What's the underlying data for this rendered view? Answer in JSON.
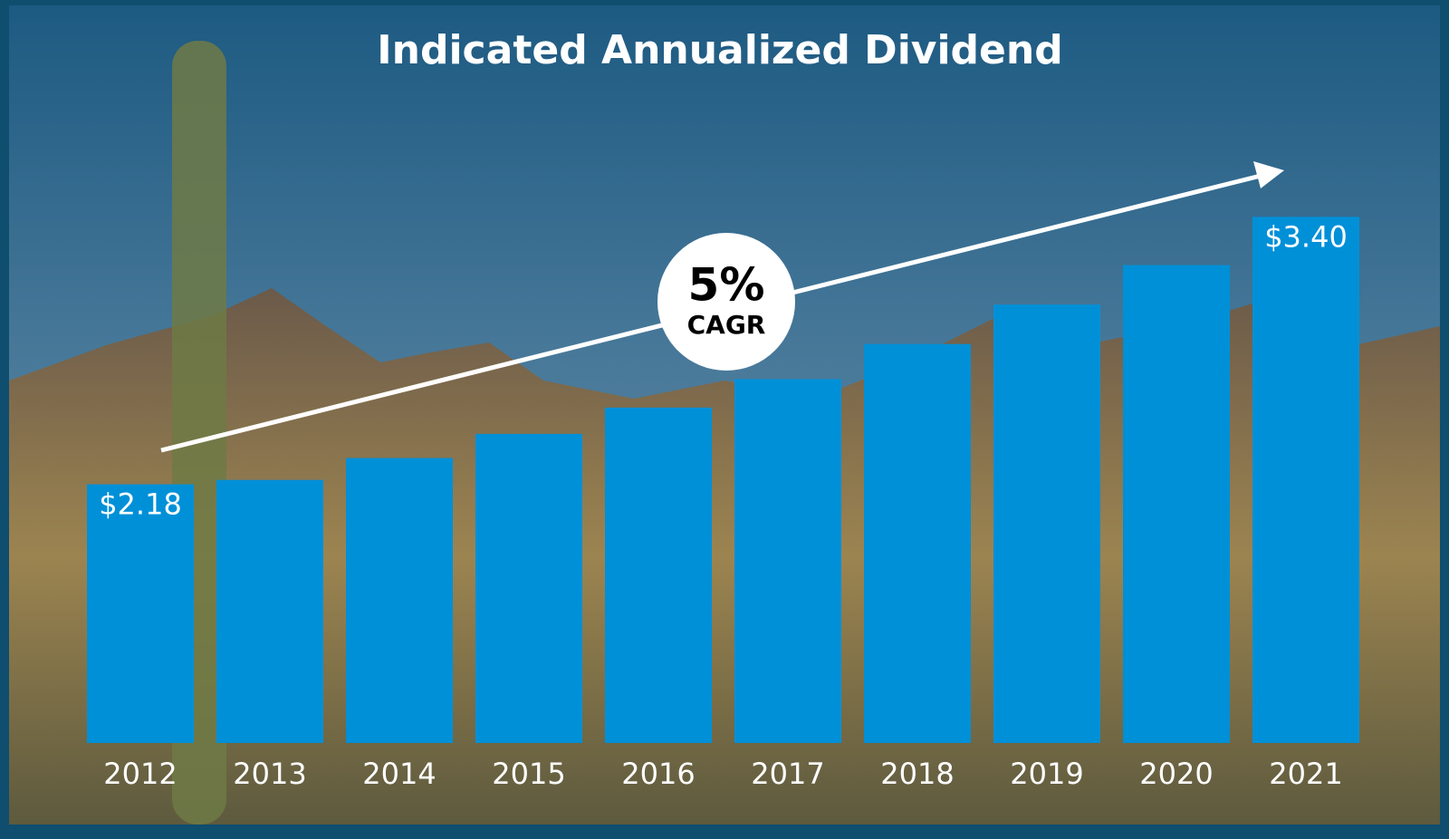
{
  "chart_data": {
    "type": "bar",
    "title": "Indicated Annualized Dividend",
    "categories": [
      "2012",
      "2013",
      "2014",
      "2015",
      "2016",
      "2017",
      "2018",
      "2019",
      "2020",
      "2021"
    ],
    "values": [
      2.18,
      2.2,
      2.3,
      2.41,
      2.53,
      2.66,
      2.82,
      3.0,
      3.18,
      3.4
    ],
    "value_labels": [
      "$2.18",
      null,
      null,
      null,
      null,
      null,
      null,
      null,
      null,
      "$3.40"
    ],
    "color": "#0090d8",
    "ylim": [
      1,
      3.6
    ],
    "annotation": {
      "value": "5%",
      "label": "CAGR"
    }
  }
}
